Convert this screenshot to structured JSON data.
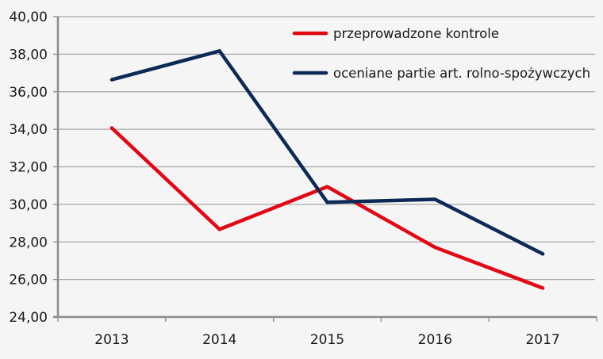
{
  "chart_data": {
    "type": "line",
    "title": "",
    "xlabel": "",
    "ylabel": "",
    "categories": [
      "2013",
      "2014",
      "2015",
      "2016",
      "2017"
    ],
    "ylim": [
      24,
      40
    ],
    "yticks": [
      "24,00",
      "26,00",
      "28,00",
      "30,00",
      "32,00",
      "34,00",
      "36,00",
      "38,00",
      "40,00"
    ],
    "grid": true,
    "legend_position": "top-right (inside)",
    "series": [
      {
        "name": "przeprowadzone kontrole",
        "color": "#e30613",
        "values": [
          34.07,
          28.67,
          30.94,
          27.71,
          25.54
        ]
      },
      {
        "name": "oceniane partie art. rolno-spożywczych",
        "color": "#0b2a55",
        "values": [
          36.64,
          38.17,
          30.11,
          30.27,
          27.36
        ]
      }
    ]
  }
}
